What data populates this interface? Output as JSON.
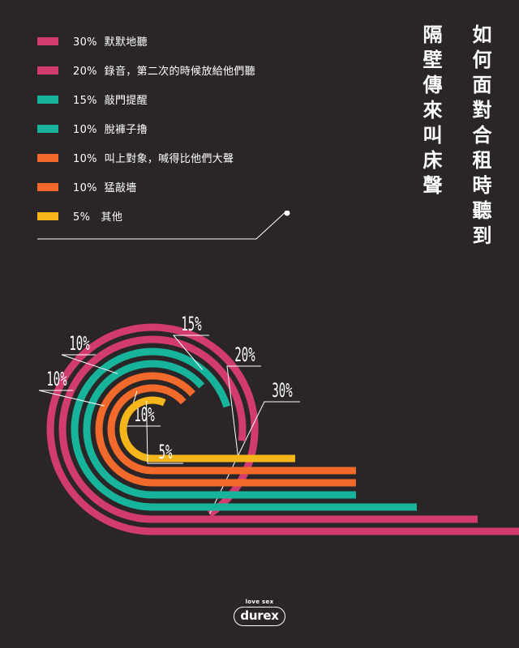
{
  "title": "如何面對合租時聽到",
  "subtitle": "隔壁傳來叫床聲",
  "brand": {
    "tagline": "love sex",
    "logo": "durex"
  },
  "colors": {
    "background": "#2a2627",
    "magenta": "#d13b6d",
    "teal": "#17b39b",
    "orange": "#f1692b",
    "yellow": "#f5b61b"
  },
  "legend": [
    {
      "percent": "30%",
      "label": "默默地聽",
      "color": "#d13b6d"
    },
    {
      "percent": "20%",
      "label": "錄音，第二次的時候放給他們聽",
      "color": "#d13b6d"
    },
    {
      "percent": "15%",
      "label": "敲門提醒",
      "color": "#17b39b"
    },
    {
      "percent": "10%",
      "label": "脫褲子擼",
      "color": "#17b39b"
    },
    {
      "percent": "10%",
      "label": "叫上對象，喊得比他們大聲",
      "color": "#f1692b"
    },
    {
      "percent": "10%",
      "label": "猛敲墻",
      "color": "#f1692b"
    },
    {
      "percent": "5%",
      "label": "其他",
      "color": "#f5b61b"
    }
  ],
  "chart_data": {
    "type": "radial-bar",
    "unit": "%",
    "categories": [
      "默默地聽",
      "錄音，第二次的時候放給他們聽",
      "敲門提醒",
      "脫褲子擼",
      "叫上對象，喊得比他們大聲",
      "猛敲墻",
      "其他"
    ],
    "values": [
      30,
      20,
      15,
      10,
      10,
      10,
      5
    ],
    "data_labels": [
      "30%",
      "20%",
      "15%",
      "10%",
      "10%",
      "10%",
      "5%"
    ],
    "colors": [
      "#d13b6d",
      "#d13b6d",
      "#17b39b",
      "#17b39b",
      "#f1692b",
      "#f1692b",
      "#f5b61b"
    ],
    "legend": "top-left",
    "grid": false
  }
}
